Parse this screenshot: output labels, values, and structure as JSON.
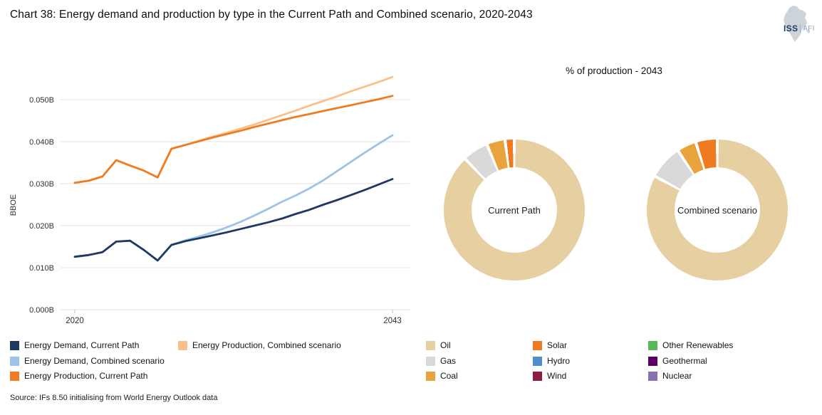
{
  "header": {
    "title": "Chart 38: Energy demand and production by type in the Current Path and Combined scenario, 2020-2043",
    "logo": {
      "iss": "ISS",
      "afi": "AFI"
    }
  },
  "donut_section": {
    "title": "% of production - 2043",
    "donut_labels": [
      "Current Path",
      "Combined scenario"
    ]
  },
  "chart_data": [
    {
      "type": "line",
      "ylabel": "BBOE",
      "x": [
        2020,
        2021,
        2022,
        2023,
        2024,
        2025,
        2026,
        2027,
        2028,
        2029,
        2030,
        2031,
        2032,
        2033,
        2034,
        2035,
        2036,
        2037,
        2038,
        2039,
        2040,
        2041,
        2042,
        2043
      ],
      "x_tick_labels": [
        "2020",
        "2043"
      ],
      "y_ticks": [
        0,
        0.01,
        0.02,
        0.03,
        0.04,
        0.05
      ],
      "y_tick_labels": [
        "0.000B",
        "0.010B",
        "0.020B",
        "0.030B",
        "0.040B",
        "0.050B"
      ],
      "ylim": [
        0,
        0.058
      ],
      "grid": true,
      "series": [
        {
          "name": "Energy Demand, Current Path",
          "color": "#1F3864",
          "values": [
            0.0126,
            0.013,
            0.0137,
            0.0162,
            0.0164,
            0.0142,
            0.0117,
            0.0154,
            0.0163,
            0.017,
            0.0177,
            0.0184,
            0.0192,
            0.02,
            0.0208,
            0.0217,
            0.0228,
            0.0238,
            0.025,
            0.0261,
            0.0273,
            0.0285,
            0.0298,
            0.0311
          ]
        },
        {
          "name": "Energy Demand, Combined scenario",
          "color": "#9DC3E6",
          "values": [
            0.0126,
            0.013,
            0.0137,
            0.0162,
            0.0164,
            0.0142,
            0.0117,
            0.0154,
            0.0165,
            0.0174,
            0.0184,
            0.0196,
            0.0209,
            0.0224,
            0.024,
            0.0257,
            0.0272,
            0.0289,
            0.0308,
            0.033,
            0.0352,
            0.0374,
            0.0395,
            0.0415
          ]
        },
        {
          "name": "Energy Production, Current Path",
          "color": "#EE7C22",
          "values": [
            0.0302,
            0.0307,
            0.0317,
            0.0356,
            0.0343,
            0.0331,
            0.0315,
            0.0383,
            0.0392,
            0.0401,
            0.041,
            0.0418,
            0.0426,
            0.0435,
            0.0443,
            0.0451,
            0.0459,
            0.0466,
            0.0473,
            0.048,
            0.0487,
            0.0494,
            0.0501,
            0.0509
          ]
        },
        {
          "name": "Energy Production, Combined scenario",
          "color": "#F9C08A",
          "values": [
            0.0302,
            0.0307,
            0.0317,
            0.0356,
            0.0343,
            0.0331,
            0.0315,
            0.0383,
            0.0392,
            0.0402,
            0.0412,
            0.0421,
            0.0431,
            0.0441,
            0.0452,
            0.0463,
            0.0474,
            0.0486,
            0.0497,
            0.0508,
            0.052,
            0.0531,
            0.0542,
            0.0554
          ]
        }
      ]
    },
    {
      "type": "pie",
      "title": "Current Path",
      "slices": [
        {
          "label": "Oil",
          "value": 87.8,
          "color": "#E6CFA0"
        },
        {
          "label": "Gas",
          "value": 5.9,
          "color": "#D9D9D9"
        },
        {
          "label": "Coal",
          "value": 4.2,
          "color": "#E8A33C"
        },
        {
          "label": "Solar",
          "value": 2.1,
          "color": "#F07A20"
        }
      ]
    },
    {
      "type": "pie",
      "title": "Combined scenario",
      "slices": [
        {
          "label": "Oil",
          "value": 82.9,
          "color": "#E6CFA0"
        },
        {
          "label": "Gas",
          "value": 7.8,
          "color": "#D9D9D9"
        },
        {
          "label": "Coal",
          "value": 4.4,
          "color": "#E8A33C"
        },
        {
          "label": "Solar",
          "value": 4.9,
          "color": "#F07A20"
        }
      ]
    }
  ],
  "line_legend": {
    "items": [
      {
        "label": "Energy Demand, Current Path",
        "color": "#1F3864"
      },
      {
        "label": "Energy Demand, Combined scenario",
        "color": "#9DC3E6"
      },
      {
        "label": "Energy Production, Current Path",
        "color": "#EE7C22"
      },
      {
        "label": "Energy Production, Combined scenario",
        "color": "#F9C08A"
      }
    ]
  },
  "donut_legend": {
    "items": [
      {
        "label": "Oil",
        "color": "#E6CFA0"
      },
      {
        "label": "Gas",
        "color": "#D9D9D9"
      },
      {
        "label": "Coal",
        "color": "#E8A33C"
      },
      {
        "label": "Solar",
        "color": "#F07A20"
      },
      {
        "label": "Hydro",
        "color": "#4E8FCB"
      },
      {
        "label": "Wind",
        "color": "#8C1D40"
      },
      {
        "label": "Other Renewables",
        "color": "#5BB75B"
      },
      {
        "label": "Geothermal",
        "color": "#5C0066"
      },
      {
        "label": "Nuclear",
        "color": "#8672AE"
      }
    ]
  },
  "source": {
    "text": "Source: IFs 8.50 initialising from World Energy Outlook data"
  }
}
